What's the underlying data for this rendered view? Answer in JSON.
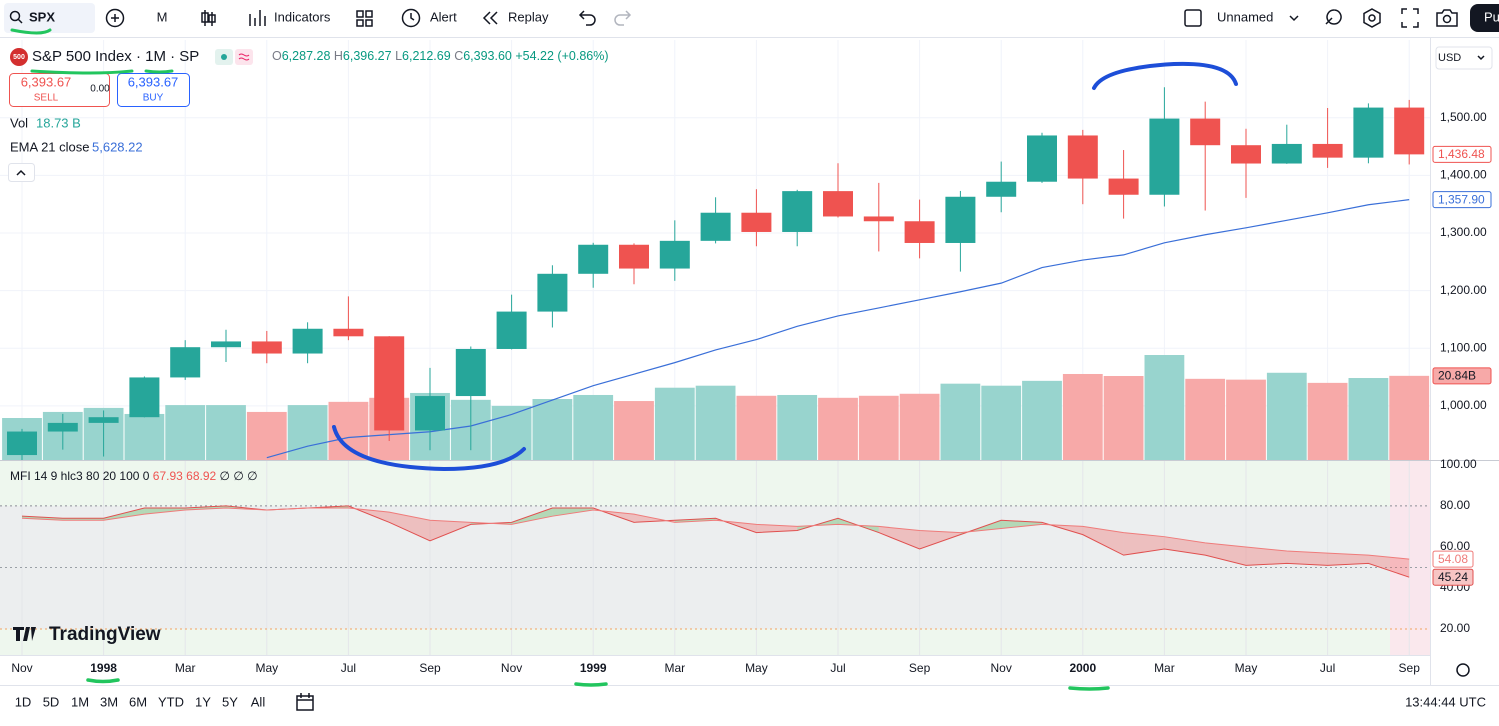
{
  "toolbar": {
    "symbol": "SPX",
    "interval": "M",
    "indicators": "Indicators",
    "alert": "Alert",
    "replay": "Replay",
    "layout": "Unnamed",
    "publish": "Pu"
  },
  "legend": {
    "logo": "500",
    "title": "S&P 500 Index · 1M · SP",
    "ohlc": [
      {
        "k": "O",
        "v": "6,287.28"
      },
      {
        "k": "H",
        "v": "6,396.27"
      },
      {
        "k": "L",
        "v": "6,212.69"
      },
      {
        "k": "C",
        "v": "6,393.60"
      }
    ],
    "change": "+54.22 (+0.86%)"
  },
  "trade": {
    "sell_price": "6,393.67",
    "sell": "SELL",
    "spread": "0.00",
    "buy_price": "6,393.67",
    "buy": "BUY"
  },
  "vol": {
    "label": "Vol",
    "value": "18.73 B"
  },
  "ema": {
    "label": "EMA 21 close",
    "value": "5,628.22"
  },
  "currency": "USD",
  "watermark": "TradingView",
  "ranges": [
    "1D",
    "5D",
    "1M",
    "3M",
    "6M",
    "YTD",
    "1Y",
    "5Y",
    "All"
  ],
  "clock": "13:44:44 UTC",
  "chart_data": [
    {
      "type": "candlestick",
      "categories": [
        "Nov",
        null,
        "1998",
        null,
        "Mar",
        null,
        "May",
        null,
        "Jul",
        null,
        "Sep",
        null,
        "Nov",
        null,
        "1999",
        null,
        "Mar",
        null,
        "May",
        null,
        "Jul",
        null,
        "Sep",
        null,
        "Nov",
        null,
        "2000",
        null,
        "Mar",
        null,
        "May",
        null,
        "Jul",
        null,
        "Sep"
      ],
      "open": [
        914.6,
        955.4,
        970.4,
        980.3,
        1049.3,
        1101.8,
        1111.8,
        1090.8,
        1133.8,
        1120.7,
        957.3,
        1017,
        1098.7,
        1163.6,
        1229.2,
        1279.6,
        1238.3,
        1286.4,
        1335.2,
        1301.8,
        1372.7,
        1328.7,
        1320.4,
        1282.7,
        1362.9,
        1389,
        1469.3,
        1394.5,
        1366.4,
        1498.6,
        1452.4,
        1420.6,
        1454.6,
        1430.8,
        1517.7
      ],
      "high": [
        960,
        986,
        992,
        1051,
        1114,
        1132,
        1130,
        1145,
        1190,
        1121,
        1066,
        1103,
        1193,
        1244,
        1283,
        1282,
        1322,
        1362,
        1376,
        1375,
        1421,
        1387,
        1358,
        1373,
        1424,
        1474,
        1479,
        1444,
        1553,
        1528,
        1481,
        1488,
        1517,
        1525,
        1531
      ],
      "low": [
        855,
        924,
        912,
        980,
        1045,
        1076,
        1074,
        1074,
        1114,
        939,
        923,
        923,
        1098,
        1136,
        1205,
        1211,
        1217,
        1282,
        1277,
        1277,
        1327,
        1268,
        1256,
        1233,
        1336,
        1387,
        1350,
        1325,
        1346,
        1339,
        1361,
        1420,
        1413,
        1421,
        1419
      ],
      "close": [
        955.4,
        970.4,
        980.3,
        1049.3,
        1101.8,
        1111.8,
        1090.8,
        1133.8,
        1120.7,
        957.3,
        1017,
        1098.7,
        1163.6,
        1229.2,
        1279.6,
        1238.3,
        1286.4,
        1335.2,
        1301.8,
        1372.7,
        1328.7,
        1320.4,
        1282.7,
        1362.9,
        1389,
        1469.3,
        1394.5,
        1366.4,
        1498.6,
        1452.4,
        1420.6,
        1454.6,
        1430.8,
        1517.7,
        1436.48
      ],
      "last_label": "1,436.48",
      "ema": [
        null,
        null,
        null,
        null,
        null,
        null,
        910,
        930,
        945,
        950,
        955,
        965,
        985,
        1010,
        1035,
        1055,
        1075,
        1097,
        1115,
        1138,
        1156,
        1170,
        1184,
        1198,
        1213,
        1240,
        1253,
        1262,
        1283,
        1297,
        1309,
        1322,
        1335,
        1349,
        1357.9
      ],
      "ema_label": "1,357.90",
      "volume": [
        10.4,
        11.9,
        12.9,
        11.4,
        13.6,
        13.6,
        11.9,
        13.6,
        14.4,
        15.4,
        16.6,
        14.9,
        13.4,
        15.1,
        16.1,
        14.6,
        17.9,
        18.4,
        15.9,
        16.1,
        15.4,
        15.9,
        16.4,
        18.9,
        18.4,
        19.6,
        21.3,
        20.8,
        26.0,
        20.1,
        19.9,
        21.6,
        19.1,
        20.3,
        20.84
      ],
      "volume_label": "20.84B",
      "vlim": [
        0,
        104
      ],
      "ylim": [
        906,
        1635
      ],
      "yticks": [
        {
          "value": 1000,
          "label": "1,000.00"
        },
        {
          "value": 1100,
          "label": "1,100.00"
        },
        {
          "value": 1200,
          "label": "1,200.00"
        },
        {
          "value": 1300,
          "label": "1,300.00"
        },
        {
          "value": 1400,
          "label": "1,400.00"
        },
        {
          "value": 1500,
          "label": "1,500.00"
        }
      ],
      "grid": true,
      "up_color": "#26a69a",
      "down_color": "#ef5350",
      "volume_up_color": "#98d4ce",
      "volume_down_color": "#f7a9a8",
      "ema_color": "#3a6fd8"
    },
    {
      "type": "line",
      "title": "MFI 14 9 hlc3 80 20 100 0",
      "readout": [
        "67.93",
        "68.92"
      ],
      "extra": "∅ ∅ ∅",
      "series": [
        {
          "color": "#e0504f",
          "values": [
            75,
            74,
            74,
            79,
            79,
            80,
            78,
            79,
            80,
            72,
            63,
            71,
            72,
            79,
            79,
            72,
            73,
            74,
            67,
            68,
            74,
            67,
            59,
            66,
            73,
            72,
            66,
            56,
            59,
            56,
            51,
            52,
            51,
            52,
            45.24
          ],
          "last_label": "45.24"
        },
        {
          "color": "#ef7b7a",
          "values": [
            74,
            73,
            73,
            76,
            78,
            79,
            78,
            79,
            79,
            77,
            73,
            72,
            71,
            75,
            78,
            76,
            72,
            73,
            71,
            70,
            71,
            70,
            68,
            67,
            69,
            71,
            70,
            67,
            65,
            62,
            60,
            58,
            57,
            56,
            54.08
          ],
          "last_label": "54.08"
        }
      ],
      "levels": [
        80,
        50,
        20
      ],
      "ylim": [
        7.3,
        102.4
      ],
      "yticks": [
        {
          "value": 100,
          "label": "100.00"
        },
        {
          "value": 80,
          "label": "80.00"
        },
        {
          "value": 60,
          "label": "60.00"
        },
        {
          "value": 40,
          "label": "40.00"
        },
        {
          "value": 20,
          "label": "20.00"
        }
      ]
    }
  ]
}
